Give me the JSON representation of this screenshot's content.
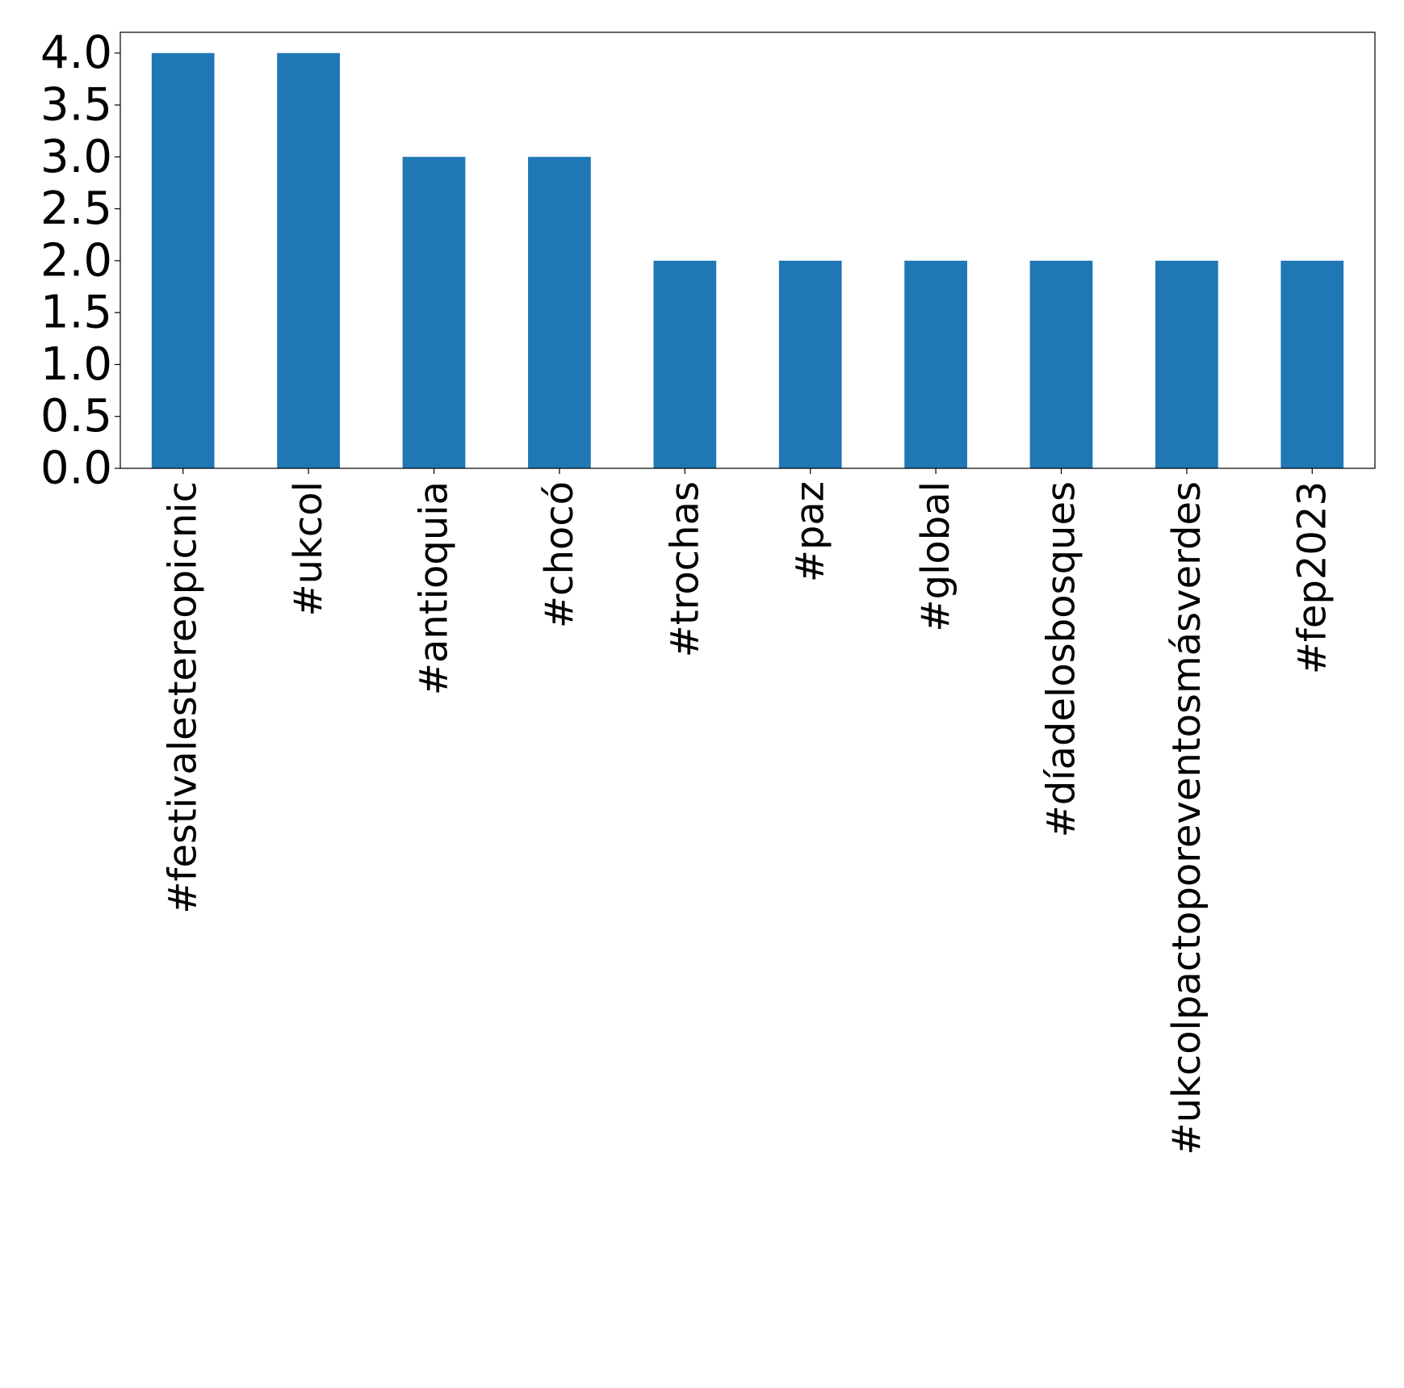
{
  "chart_data": {
    "type": "bar",
    "title": "",
    "xlabel": "",
    "ylabel": "",
    "categories": [
      "#festivalestereopicnic",
      "#ukcol",
      "#antioquia",
      "#chocó",
      "#trochas",
      "#paz",
      "#global",
      "#díadelosbosques",
      "#ukcolpactoporeventosmásverdes",
      "#fep2023"
    ],
    "values": [
      4,
      4,
      3,
      3,
      2,
      2,
      2,
      2,
      2,
      2
    ],
    "ylim": [
      0,
      4.2
    ],
    "yticks": [
      "0.0",
      "0.5",
      "1.0",
      "1.5",
      "2.0",
      "2.5",
      "3.0",
      "3.5",
      "4.0"
    ],
    "grid": false,
    "legend": "none",
    "bar_color": "#1f77b4"
  }
}
